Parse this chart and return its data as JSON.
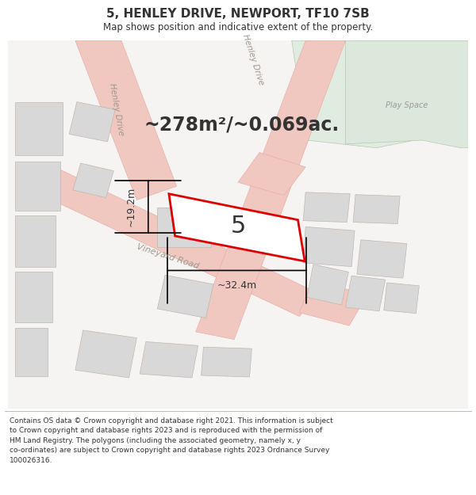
{
  "title": "5, HENLEY DRIVE, NEWPORT, TF10 7SB",
  "subtitle": "Map shows position and indicative extent of the property.",
  "footer": "Contains OS data © Crown copyright and database right 2021. This information is subject\nto Crown copyright and database rights 2023 and is reproduced with the permission of\nHM Land Registry. The polygons (including the associated geometry, namely x, y\nco-ordinates) are subject to Crown copyright and database rights 2023 Ordnance Survey\n100026316.",
  "area_label": "~278m²/~0.069ac.",
  "width_label": "~32.4m",
  "height_label": "~19.2m",
  "plot_number": "5",
  "map_bg": "#f5f4f2",
  "road_color": "#f0c8c0",
  "road_ec": "#e8b0a8",
  "building_color": "#d8d8d8",
  "building_edge": "#c0b8b0",
  "green_area": "#e0ece0",
  "green_inner": "#dce8dc",
  "green_edge": "#b8c8b0",
  "plot_outline": "#dd0000",
  "road_label_color": "#a09890",
  "text_color": "#333333",
  "footer_color": "#333333",
  "title_fontsize": 11,
  "subtitle_fontsize": 8.5,
  "footer_fontsize": 6.5,
  "area_fontsize": 17,
  "plot_num_fontsize": 22,
  "dim_fontsize": 9,
  "road_label_fontsize": 7.5,
  "vineyard_label_fontsize": 8,
  "playspace_fontsize": 7
}
